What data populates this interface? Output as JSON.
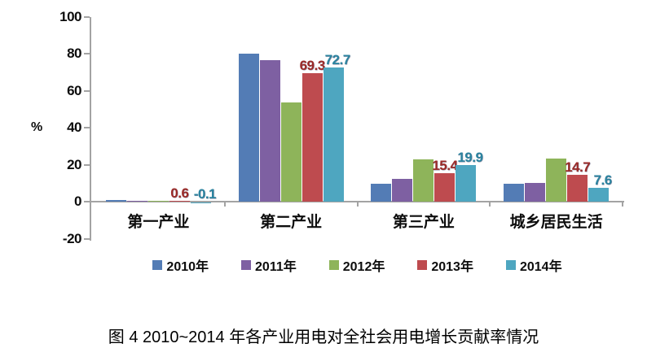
{
  "figure": {
    "caption": "图 4  2010~2014 年各产业用电对全社会用电增长贡献率情况"
  },
  "chart_data": {
    "type": "bar",
    "title": "",
    "ylabel": "%",
    "ylim": [
      -20,
      100
    ],
    "ytick_interval": 20,
    "yticks": [
      100,
      80,
      60,
      40,
      20,
      0,
      -20
    ],
    "grid": false,
    "legend_position": "bottom",
    "categories": [
      "第一产业",
      "第二产业",
      "第三产业",
      "城乡居民生活"
    ],
    "series": [
      {
        "name": "2010年",
        "color": "#537cb5",
        "values": [
          0.8,
          80.2,
          9.8,
          9.8
        ]
      },
      {
        "name": "2011年",
        "color": "#7e60a2",
        "values": [
          0.6,
          76.3,
          12.5,
          10.1
        ]
      },
      {
        "name": "2012年",
        "color": "#8eb45a",
        "values": [
          0.3,
          53.5,
          23.0,
          23.5
        ]
      },
      {
        "name": "2013年",
        "color": "#be4b4f",
        "label_color": "#9c2b28",
        "values": [
          0.6,
          69.3,
          15.4,
          14.7
        ],
        "data_labels": [
          "0.6",
          "69.3",
          "15.4",
          "14.7"
        ]
      },
      {
        "name": "2014年",
        "color": "#4ea6c0",
        "label_color": "#2b84a0",
        "values": [
          -0.1,
          72.7,
          19.9,
          7.6
        ],
        "data_labels": [
          "-0.1",
          "72.7",
          "19.9",
          "7.6"
        ]
      }
    ]
  }
}
